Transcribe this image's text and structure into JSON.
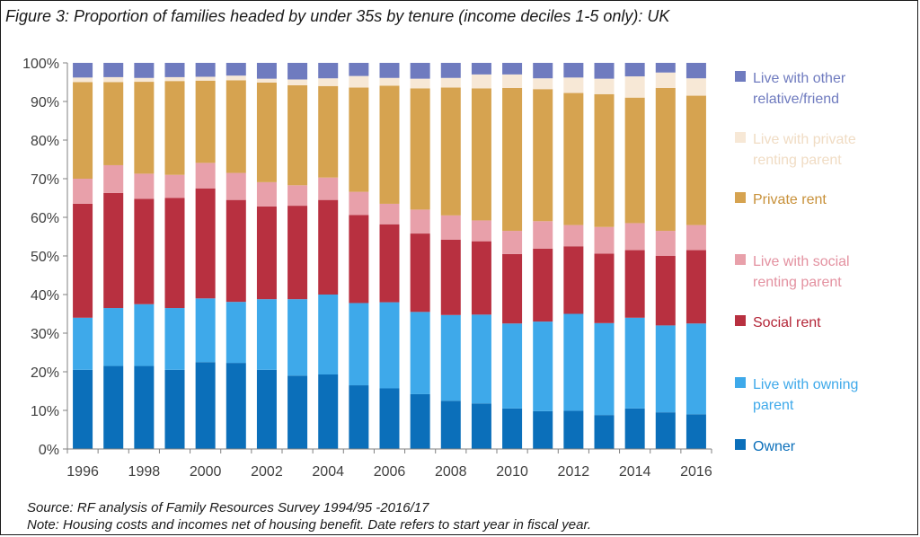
{
  "chart_data": {
    "type": "bar",
    "stacked": true,
    "title": "Figure 3: Proportion of families headed by under 35s by tenure (income deciles 1-5 only): UK",
    "categories": [
      "1996",
      "1997",
      "1998",
      "1999",
      "2000",
      "2001",
      "2002",
      "2003",
      "2004",
      "2005",
      "2006",
      "2007",
      "2008",
      "2009",
      "2010",
      "2011",
      "2012",
      "2013",
      "2014",
      "2015",
      "2016"
    ],
    "x_tick_labels": [
      "1996",
      "1998",
      "2000",
      "2002",
      "2004",
      "2006",
      "2008",
      "2010",
      "2012",
      "2014",
      "2016"
    ],
    "y_tick_labels": [
      "0%",
      "10%",
      "20%",
      "30%",
      "40%",
      "50%",
      "60%",
      "70%",
      "80%",
      "90%",
      "100%"
    ],
    "ylim": [
      0,
      100
    ],
    "grid": false,
    "legend_position": "right",
    "series": [
      {
        "name": "Owner",
        "color": "#0b6fba",
        "values": [
          20.5,
          21.5,
          21.5,
          20.5,
          22.5,
          22.3,
          20.5,
          19,
          19.3,
          16.5,
          15.7,
          14.2,
          12.5,
          11.8,
          10.5,
          9.8,
          9.9,
          8.8,
          10.5,
          9.5,
          9
        ]
      },
      {
        "name": "Live with owning parent",
        "color": "#3ea9ea",
        "values": [
          13.5,
          15,
          16,
          16,
          16.5,
          15.8,
          18.3,
          19.8,
          20.7,
          21.3,
          22.3,
          21.3,
          22.2,
          23,
          22,
          23.2,
          25.1,
          23.8,
          23.5,
          22.5,
          23.5
        ]
      },
      {
        "name": "Social rent",
        "color": "#b83040",
        "values": [
          29.5,
          29.8,
          27.3,
          28.5,
          28.5,
          26.4,
          24,
          24.2,
          24.5,
          22.8,
          20.2,
          20.3,
          19.5,
          19,
          18,
          18.9,
          17.5,
          18,
          17.5,
          18,
          19
        ]
      },
      {
        "name": "Live with social renting parent",
        "color": "#e8a0aa",
        "values": [
          6.5,
          7.2,
          6.5,
          6,
          6.6,
          7,
          6.3,
          5.3,
          5.8,
          6,
          5.3,
          6.2,
          6.3,
          5.4,
          6,
          7.1,
          5.5,
          6.9,
          7,
          6.5,
          6.5
        ]
      },
      {
        "name": "Private rent",
        "color": "#d6a350",
        "values": [
          25,
          21.5,
          23.8,
          24.3,
          21.3,
          24,
          25.8,
          25.9,
          23.7,
          27,
          30.6,
          31.4,
          33.1,
          34.2,
          37,
          34.2,
          34.2,
          34.4,
          32.5,
          37,
          33.5
        ]
      },
      {
        "name": "Live with private renting parent",
        "color": "#f7e8d6",
        "values": [
          1.2,
          1.3,
          1,
          1,
          1,
          1.2,
          1,
          1.5,
          2,
          3,
          2,
          2.5,
          2.5,
          3.6,
          3.5,
          2.8,
          4,
          4,
          5.5,
          4,
          4.5
        ]
      },
      {
        "name": "Live with other relative/friend",
        "color": "#6f7bbf",
        "values": [
          3.8,
          3.7,
          3.9,
          3.7,
          3.6,
          3.3,
          4.1,
          4.3,
          4,
          3.4,
          3.9,
          4.1,
          3.9,
          3,
          3,
          4,
          3.8,
          4.1,
          3.5,
          2.5,
          4
        ]
      }
    ],
    "legend_items": [
      {
        "lines": [
          "Live with other",
          "relative/friend"
        ],
        "color": "#6f7bbf",
        "text_color": "#6f7bbf"
      },
      {
        "lines": [
          "Live with private",
          "renting parent"
        ],
        "color": "#f7e8d6",
        "text_color": "#f0dcc4"
      },
      {
        "lines": [
          "Private rent"
        ],
        "color": "#d6a350",
        "text_color": "#c8913a"
      },
      {
        "lines": [
          "Live with social",
          "renting parent"
        ],
        "color": "#e8a0aa",
        "text_color": "#e391a0"
      },
      {
        "lines": [
          "Social rent"
        ],
        "color": "#b83040",
        "text_color": "#b42638"
      },
      {
        "lines": [
          "Live with owning",
          "parent"
        ],
        "color": "#3ea9ea",
        "text_color": "#3ea9ea"
      },
      {
        "lines": [
          "Owner"
        ],
        "color": "#0b6fba",
        "text_color": "#0b6fba"
      }
    ]
  },
  "footer": {
    "source": "Source: RF analysis of Family Resources Survey 1994/95 -2016/17",
    "note": "Note: Housing costs and incomes net of housing benefit. Date refers to start year in fiscal year."
  }
}
